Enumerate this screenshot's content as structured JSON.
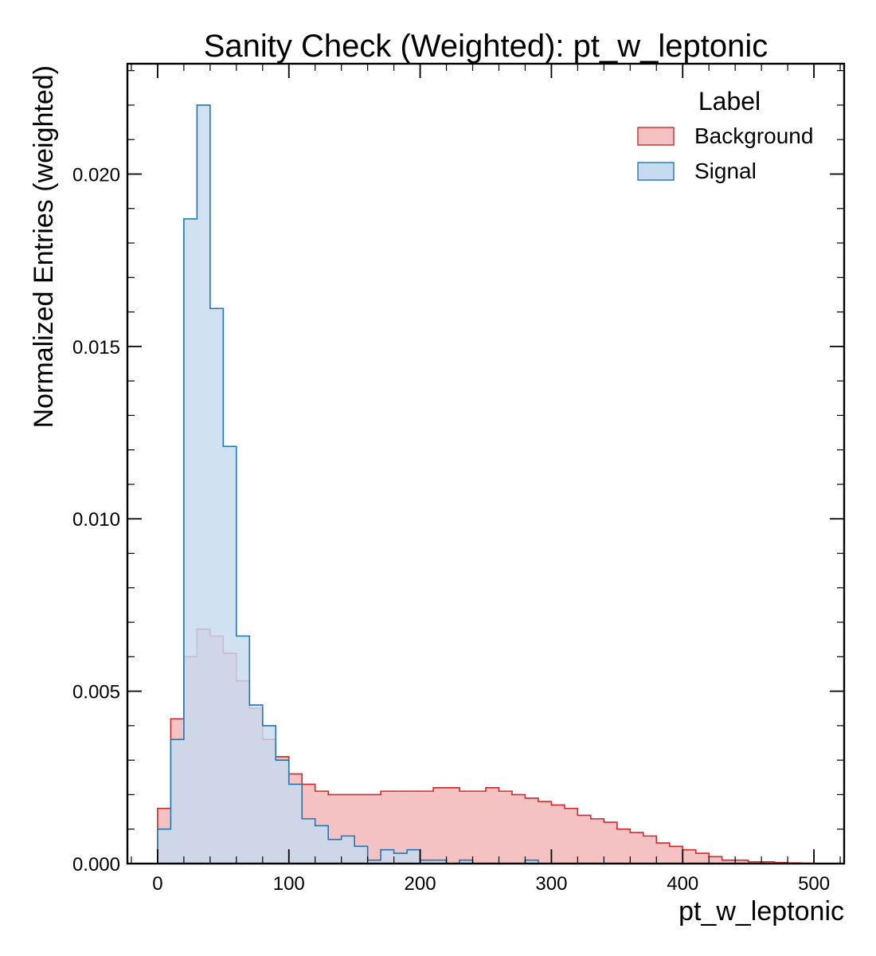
{
  "chart_data": {
    "type": "histogram",
    "title": "Sanity Check (Weighted): pt_w_leptonic",
    "xlabel": "pt_w_leptonic",
    "ylabel": "Normalized Entries (weighted)",
    "xlim": [
      -23,
      523
    ],
    "ylim": [
      0,
      0.0232
    ],
    "bin_start": 0,
    "bin_width": 10,
    "x_ticks": [
      0,
      100,
      200,
      300,
      400,
      500
    ],
    "x_tick_labels": [
      "0",
      "100",
      "200",
      "300",
      "400",
      "500"
    ],
    "y_ticks": [
      0,
      0.005,
      0.01,
      0.015,
      0.02
    ],
    "y_tick_labels": [
      "0.000",
      "0.005",
      "0.010",
      "0.015",
      "0.020"
    ],
    "grid": false,
    "legend": {
      "title": "Label",
      "placement": "top-right"
    },
    "series": [
      {
        "name": "Background",
        "fill": "#f4c2c3",
        "stroke": "#d62728",
        "values": [
          0.0016,
          0.0042,
          0.006,
          0.0068,
          0.0066,
          0.0061,
          0.0053,
          0.0045,
          0.0036,
          0.0031,
          0.0026,
          0.0023,
          0.0021,
          0.002,
          0.002,
          0.002,
          0.002,
          0.0021,
          0.0021,
          0.0021,
          0.0021,
          0.0022,
          0.0022,
          0.0021,
          0.0021,
          0.0022,
          0.0021,
          0.002,
          0.0019,
          0.0018,
          0.0017,
          0.0016,
          0.0014,
          0.0013,
          0.0012,
          0.001,
          0.0009,
          0.0008,
          0.0006,
          0.0005,
          0.0004,
          0.0003,
          0.0002,
          0.0001,
          0.0001,
          5e-05,
          5e-05,
          3e-05,
          2e-05,
          1e-05
        ]
      },
      {
        "name": "Signal",
        "fill": "#c6dbef",
        "stroke": "#1f77b4",
        "values": [
          0.001,
          0.0036,
          0.0187,
          0.022,
          0.0161,
          0.0121,
          0.0066,
          0.0046,
          0.004,
          0.003,
          0.0023,
          0.0013,
          0.0011,
          0.0007,
          0.0008,
          0.0005,
          0.0001,
          0.0004,
          0.0003,
          0.0004,
          0.0001,
          0.0001,
          0.0,
          0.0001,
          0.0,
          0.0,
          0.0,
          0.0,
          0.0001,
          0.0,
          0.0,
          0.0,
          0.0,
          0.0,
          0.0,
          0.0,
          0.0,
          0.0,
          0.0,
          0.0,
          0.0,
          0.0,
          0.0,
          0.0,
          0.0,
          0.0,
          0.0,
          0.0,
          0.0,
          0.0
        ]
      }
    ]
  }
}
